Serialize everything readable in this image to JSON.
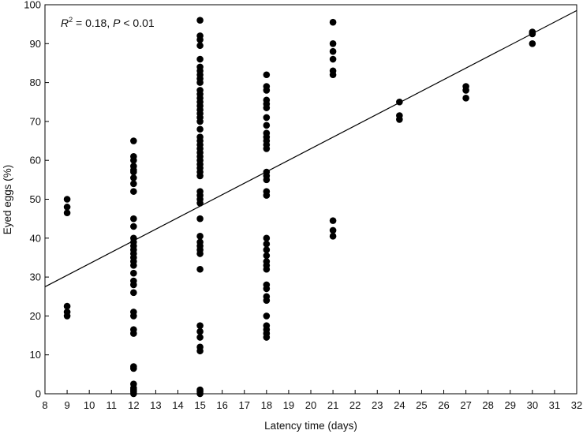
{
  "chart_data": {
    "type": "scatter",
    "xlabel": "Latency time (days)",
    "ylabel": "Eyed eggs (%)",
    "xlim": [
      8,
      32
    ],
    "ylim": [
      0,
      100
    ],
    "xticks": [
      8,
      9,
      10,
      11,
      12,
      13,
      14,
      15,
      16,
      17,
      18,
      19,
      20,
      21,
      22,
      23,
      24,
      25,
      26,
      27,
      28,
      29,
      30,
      31,
      32
    ],
    "yticks": [
      0,
      10,
      20,
      30,
      40,
      50,
      60,
      70,
      80,
      90,
      100
    ],
    "grid": false,
    "legend": "none",
    "annotation": {
      "r_label": "R",
      "r_sup": "2",
      "r_value": " = 0.18, ",
      "p_label": "P",
      "p_value": " < 0.01"
    },
    "fit_line": {
      "x": [
        8,
        32
      ],
      "y": [
        27.5,
        98.5
      ]
    },
    "series": [
      {
        "points": [
          [
            9,
            50
          ],
          [
            9,
            48
          ],
          [
            9,
            46.5
          ],
          [
            9,
            22.5
          ],
          [
            9,
            21
          ],
          [
            9,
            20
          ],
          [
            12,
            65
          ],
          [
            12,
            61
          ],
          [
            12,
            60
          ],
          [
            12,
            58.5
          ],
          [
            12,
            57.5
          ],
          [
            12,
            57
          ],
          [
            12,
            55.5
          ],
          [
            12,
            54
          ],
          [
            12,
            52
          ],
          [
            12,
            45
          ],
          [
            12,
            43
          ],
          [
            12,
            40
          ],
          [
            12,
            39
          ],
          [
            12,
            38
          ],
          [
            12,
            37
          ],
          [
            12,
            36
          ],
          [
            12,
            35
          ],
          [
            12,
            34
          ],
          [
            12,
            33
          ],
          [
            12,
            31
          ],
          [
            12,
            29
          ],
          [
            12,
            28
          ],
          [
            12,
            26
          ],
          [
            12,
            21
          ],
          [
            12,
            20
          ],
          [
            12,
            16.5
          ],
          [
            12,
            15.5
          ],
          [
            12,
            7
          ],
          [
            12,
            6.5
          ],
          [
            12,
            2.5
          ],
          [
            12,
            1.5
          ],
          [
            12,
            1
          ],
          [
            12,
            0.5
          ],
          [
            12,
            0
          ],
          [
            15,
            96
          ],
          [
            15,
            92
          ],
          [
            15,
            91
          ],
          [
            15,
            89.5
          ],
          [
            15,
            86
          ],
          [
            15,
            84
          ],
          [
            15,
            83
          ],
          [
            15,
            82
          ],
          [
            15,
            81
          ],
          [
            15,
            80
          ],
          [
            15,
            78
          ],
          [
            15,
            77
          ],
          [
            15,
            76
          ],
          [
            15,
            75
          ],
          [
            15,
            74
          ],
          [
            15,
            73
          ],
          [
            15,
            72
          ],
          [
            15,
            71
          ],
          [
            15,
            70
          ],
          [
            15,
            68
          ],
          [
            15,
            66
          ],
          [
            15,
            65
          ],
          [
            15,
            64
          ],
          [
            15,
            63
          ],
          [
            15,
            62
          ],
          [
            15,
            61
          ],
          [
            15,
            60
          ],
          [
            15,
            59
          ],
          [
            15,
            58
          ],
          [
            15,
            57
          ],
          [
            15,
            56
          ],
          [
            15,
            52
          ],
          [
            15,
            51
          ],
          [
            15,
            50
          ],
          [
            15,
            49
          ],
          [
            15,
            45
          ],
          [
            15,
            40.5
          ],
          [
            15,
            39
          ],
          [
            15,
            38
          ],
          [
            15,
            37
          ],
          [
            15,
            36
          ],
          [
            15,
            32
          ],
          [
            15,
            17.5
          ],
          [
            15,
            16
          ],
          [
            15,
            14.5
          ],
          [
            15,
            12
          ],
          [
            15,
            11
          ],
          [
            15,
            1
          ],
          [
            15,
            0.5
          ],
          [
            15,
            0
          ],
          [
            18,
            82
          ],
          [
            18,
            79
          ],
          [
            18,
            78
          ],
          [
            18,
            75.5
          ],
          [
            18,
            74.5
          ],
          [
            18,
            73.5
          ],
          [
            18,
            71
          ],
          [
            18,
            69
          ],
          [
            18,
            67
          ],
          [
            18,
            66
          ],
          [
            18,
            65
          ],
          [
            18,
            64
          ],
          [
            18,
            63
          ],
          [
            18,
            57
          ],
          [
            18,
            56
          ],
          [
            18,
            55
          ],
          [
            18,
            52
          ],
          [
            18,
            51
          ],
          [
            18,
            40
          ],
          [
            18,
            38.5
          ],
          [
            18,
            37
          ],
          [
            18,
            35.5
          ],
          [
            18,
            34
          ],
          [
            18,
            33
          ],
          [
            18,
            32
          ],
          [
            18,
            28
          ],
          [
            18,
            27
          ],
          [
            18,
            25
          ],
          [
            18,
            24
          ],
          [
            18,
            20
          ],
          [
            18,
            17.5
          ],
          [
            18,
            16.5
          ],
          [
            18,
            15.5
          ],
          [
            18,
            14.5
          ],
          [
            21,
            95.5
          ],
          [
            21,
            90
          ],
          [
            21,
            88
          ],
          [
            21,
            86
          ],
          [
            21,
            83
          ],
          [
            21,
            82
          ],
          [
            21,
            44.5
          ],
          [
            21,
            42
          ],
          [
            21,
            40.5
          ],
          [
            24,
            75
          ],
          [
            24,
            71.5
          ],
          [
            24,
            70.5
          ],
          [
            27,
            79
          ],
          [
            27,
            78
          ],
          [
            27,
            76
          ],
          [
            30,
            93
          ],
          [
            30,
            92.5
          ],
          [
            30,
            90
          ]
        ]
      }
    ]
  }
}
